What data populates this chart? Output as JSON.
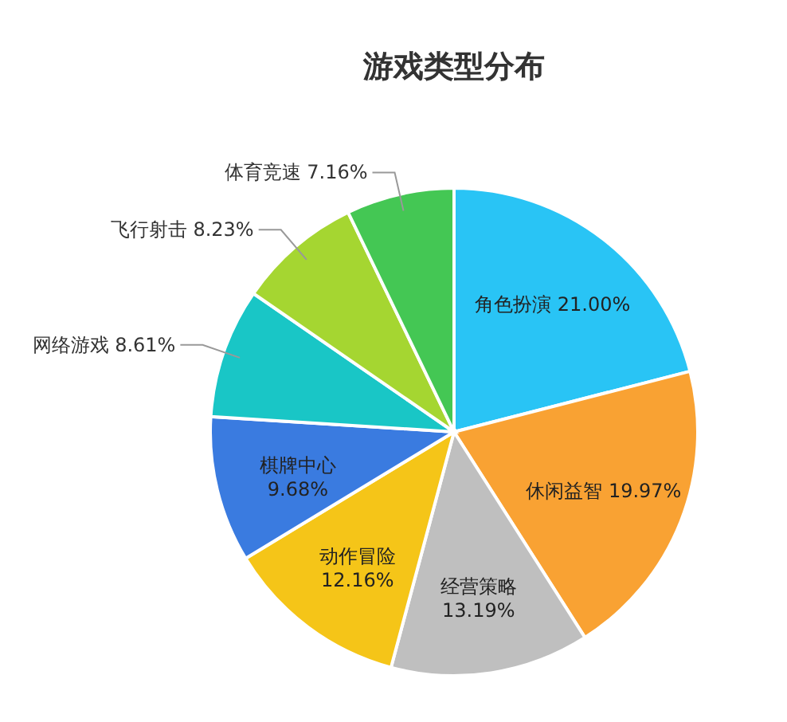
{
  "chart_data": {
    "type": "pie",
    "title": "游戏类型分布",
    "categories": [
      "角色扮演",
      "休闲益智",
      "经营策略",
      "动作冒险",
      "棋牌中心",
      "网络游戏",
      "飞行射击",
      "体育竞速"
    ],
    "values": [
      21.0,
      19.97,
      13.19,
      12.16,
      9.68,
      8.61,
      8.23,
      7.16
    ],
    "value_labels": [
      "21.00%",
      "19.97%",
      "13.19%",
      "12.16%",
      "9.68%",
      "8.61%",
      "8.23%",
      "7.16%"
    ],
    "colors": [
      "#29c4f5",
      "#f9a233",
      "#bfbfbf",
      "#f5c518",
      "#3a7be0",
      "#19c6c6",
      "#a5d631",
      "#44c754"
    ]
  }
}
